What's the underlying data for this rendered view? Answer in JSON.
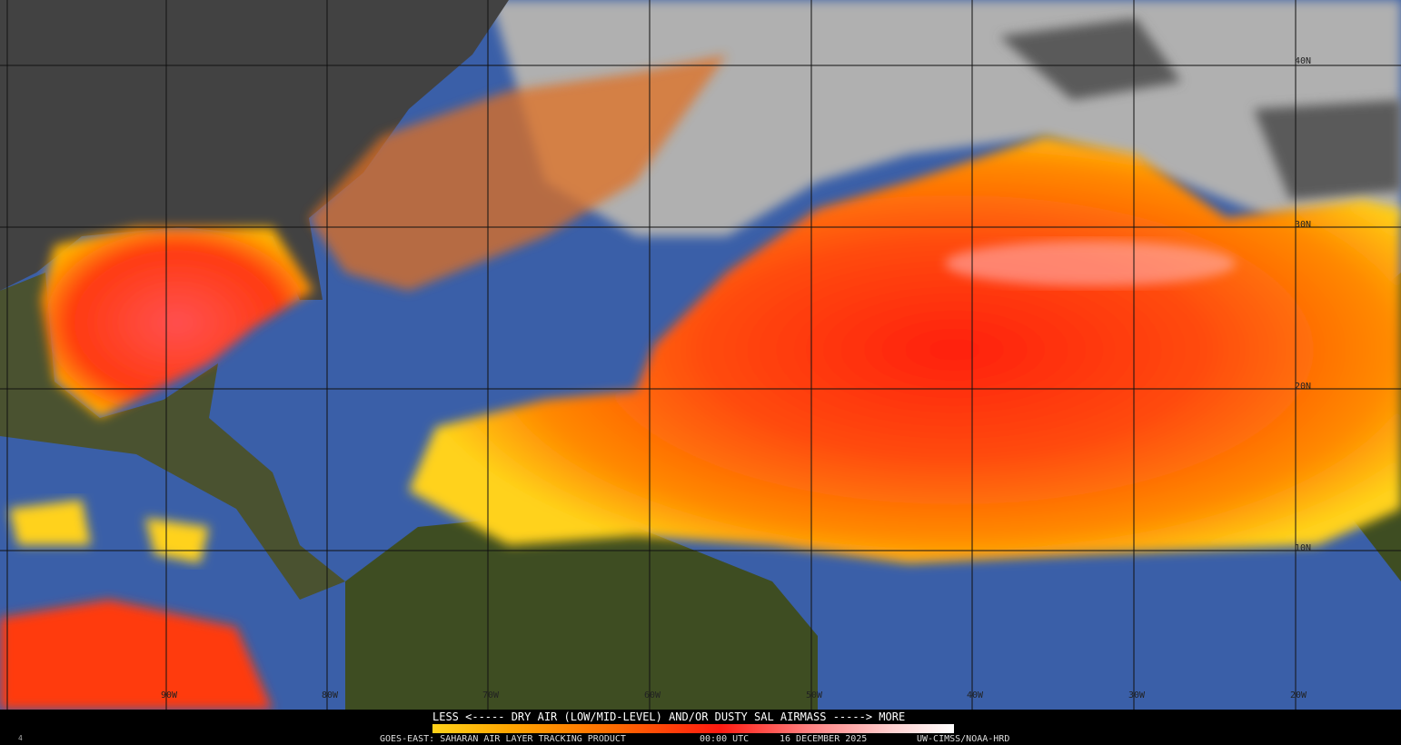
{
  "map": {
    "longitude_labels": [
      "90W",
      "80W",
      "70W",
      "60W",
      "50W",
      "40W",
      "30W",
      "20W"
    ],
    "latitude_labels": [
      "40N",
      "30N",
      "20N",
      "10N"
    ],
    "colors": {
      "ocean": "#3a5fa8",
      "land_dark": "#3f3f3f",
      "land_green": "#3e4d22",
      "cloud": "#b8b8b8",
      "sal_low": "#ffd21a",
      "sal_mid": "#ff6a00",
      "sal_high": "#ff1a10",
      "sal_max": "#ffc0c0"
    }
  },
  "legend": {
    "title": "LESS <----- DRY AIR (LOW/MID-LEVEL) AND/OR DUSTY SAL AIRMASS -----> MORE",
    "scale_min": "LESS",
    "scale_max": "MORE"
  },
  "footer": {
    "product": "GOES-EAST: SAHARAN AIR LAYER TRACKING PRODUCT",
    "time": "00:00 UTC",
    "date": "16 DECEMBER 2025",
    "credit": "UW-CIMSS/NOAA-HRD",
    "corner_mark": "4"
  }
}
